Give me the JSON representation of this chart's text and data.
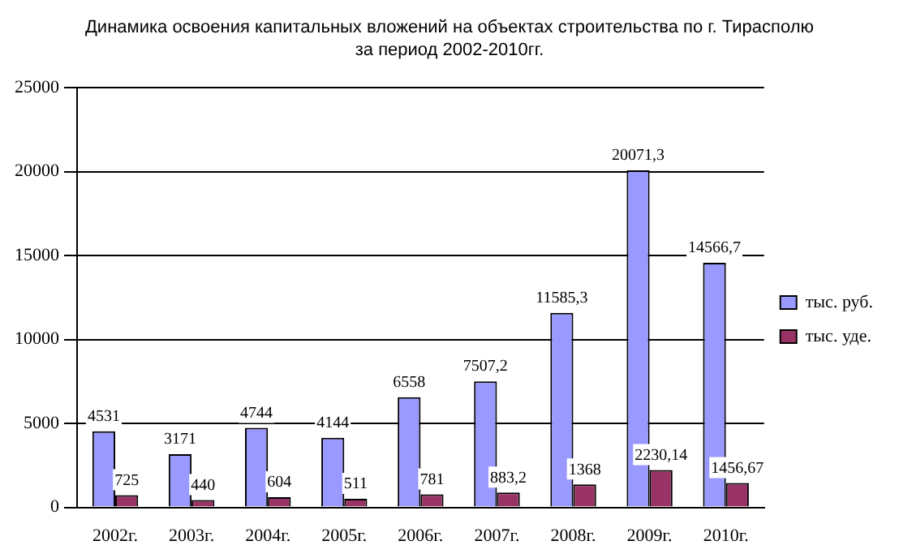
{
  "chart_data": {
    "type": "bar",
    "title": "Динамика освоения капитальных вложений на объектах строительства по г. Тирасполю\nза период 2002-2010гг.",
    "categories": [
      "2002г.",
      "2003г.",
      "2004г.",
      "2005г.",
      "2006г.",
      "2007г.",
      "2008г.",
      "2009г.",
      "2010г."
    ],
    "series": [
      {
        "name": "тыс. руб.",
        "color": "#9999ff",
        "values": [
          4531,
          3171,
          4744,
          4144,
          6558,
          7507.2,
          11585.3,
          20071.3,
          14566.7
        ],
        "value_labels": [
          "4531",
          "3171",
          "4744",
          "4144",
          "6558",
          "7507,2",
          "11585,3",
          "20071,3",
          "14566,7"
        ]
      },
      {
        "name": "тыс. уде.",
        "color": "#993366",
        "values": [
          725,
          440,
          604,
          511,
          781,
          883.2,
          1368,
          2230.14,
          1456.67
        ],
        "value_labels": [
          "725",
          "440",
          "604",
          "511",
          "781",
          "883,2",
          "1368",
          "2230,14",
          "1456,67"
        ]
      }
    ],
    "ylim": [
      0,
      25000
    ],
    "yticks": [
      0,
      5000,
      10000,
      15000,
      20000,
      25000
    ],
    "grid": "y",
    "legend": "right"
  }
}
